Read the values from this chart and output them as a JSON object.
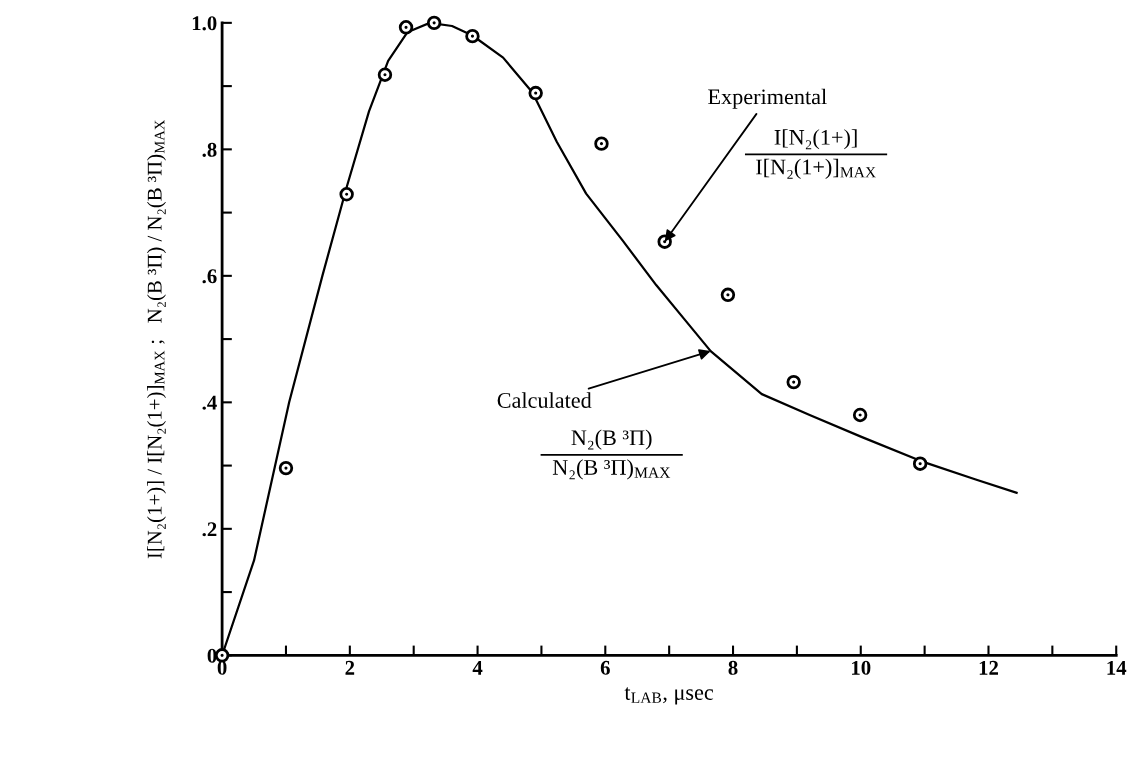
{
  "chart_data": {
    "type": "scatter",
    "xlabel": "t$_{LAB}$, μsec",
    "ylabel": "I[N₂(1+)] / I[N₂(1+)]$_{MAX}$ ;   N₂(B ³Π) / N₂(B ³Π)$_{MAX}$",
    "xlim": [
      0,
      14
    ],
    "ylim": [
      0,
      1.0
    ],
    "xticks": [
      0,
      {
        "value": 1,
        "label": null
      },
      2,
      {
        "value": 3,
        "label": null
      },
      4,
      {
        "value": 5,
        "label": null
      },
      6,
      {
        "value": 7,
        "label": null
      },
      8,
      {
        "value": 9,
        "label": null
      },
      10,
      {
        "value": 11,
        "label": null
      },
      12,
      {
        "value": 13,
        "label": null
      },
      14
    ],
    "yticks": [
      0,
      {
        "value": 0.1,
        "label": null
      },
      {
        "value": 0.2,
        "label": ".2"
      },
      {
        "value": 0.3,
        "label": null
      },
      {
        "value": 0.4,
        "label": ".4"
      },
      {
        "value": 0.5,
        "label": null
      },
      {
        "value": 0.6,
        "label": ".6"
      },
      {
        "value": 0.7,
        "label": null
      },
      {
        "value": 0.8,
        "label": ".8"
      },
      {
        "value": 0.9,
        "label": null
      },
      {
        "value": 1.0,
        "label": "1.0"
      }
    ],
    "grid": false,
    "series": [
      {
        "color": "#000000",
        "marker": "circle",
        "x": [
          0,
          1.0,
          1.95,
          2.55,
          2.88,
          3.32,
          3.92,
          4.91,
          5.94,
          6.93,
          7.92,
          8.95,
          9.99,
          10.93
        ],
        "values": [
          0,
          0.296,
          0.729,
          0.918,
          0.993,
          1.0,
          0.979,
          0.889,
          0.809,
          0.654,
          0.57,
          0.432,
          0.38,
          0.303
        ]
      },
      {
        "type": "line",
        "color": "#000000",
        "line_style": "solid",
        "x": [
          0,
          0.5,
          1.05,
          1.57,
          1.95,
          2.3,
          2.6,
          2.9,
          3.25,
          3.6,
          3.92,
          4.4,
          4.86,
          5.24,
          5.7,
          6.27,
          6.8,
          7.25,
          7.65,
          8.45,
          9.2,
          10.02,
          11,
          11.8,
          12.44
        ],
        "values": [
          0,
          0.15,
          0.4,
          0.6,
          0.74,
          0.86,
          0.94,
          0.985,
          1.0,
          0.995,
          0.98,
          0.945,
          0.89,
          0.812,
          0.73,
          0.656,
          0.585,
          0.53,
          0.481,
          0.413,
          0.38,
          0.345,
          0.305,
          0.278,
          0.257
        ]
      }
    ],
    "annotations": [
      {
        "text": "Experimental",
        "x": 6.93,
        "y": 0.654
      },
      "I[N₂(1+)]",
      "I[N₂(1+)]$_{MAX}$",
      {
        "text": "Calculated",
        "x": 7.65,
        "y": 0.481
      },
      "N₂(B ³Π)",
      "N₂(B ³Π)$_{MAX}$"
    ]
  }
}
